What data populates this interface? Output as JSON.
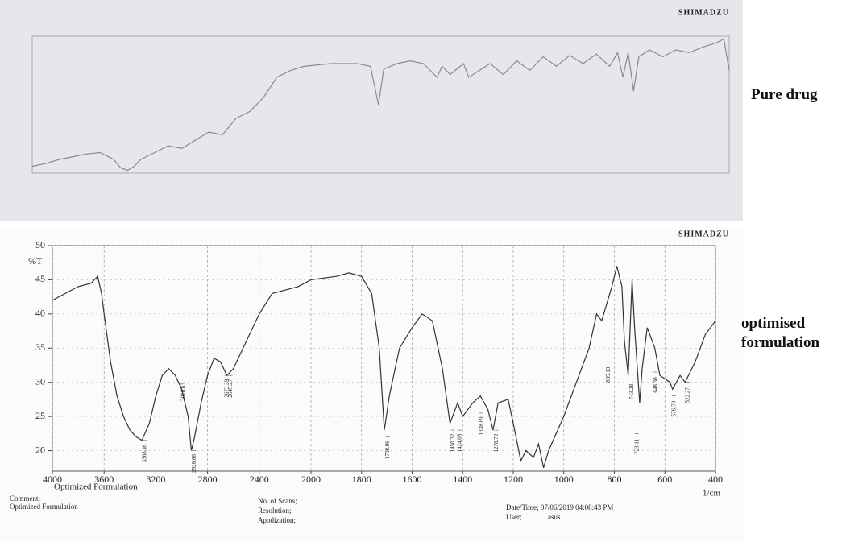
{
  "chart_data": [
    {
      "type": "line",
      "brand": "SHIMADZU",
      "side_label": "Pure drug",
      "color": "#8a8a90",
      "x_scale_break": 2000,
      "xlim": [
        4000,
        400
      ],
      "ylim": [
        0,
        100
      ],
      "x": [
        4000,
        3900,
        3800,
        3700,
        3600,
        3500,
        3400,
        3350,
        3300,
        3250,
        3200,
        3100,
        3000,
        2900,
        2800,
        2700,
        2600,
        2500,
        2400,
        2300,
        2200,
        2100,
        2000,
        1900,
        1800,
        1750,
        1720,
        1700,
        1650,
        1600,
        1550,
        1500,
        1480,
        1450,
        1400,
        1380,
        1300,
        1250,
        1200,
        1150,
        1100,
        1050,
        1000,
        950,
        900,
        850,
        820,
        800,
        780,
        760,
        740,
        700,
        650,
        600,
        550,
        500,
        450,
        420,
        400
      ],
      "values": [
        5,
        7,
        10,
        12,
        14,
        15,
        10,
        4,
        2,
        5,
        10,
        15,
        20,
        18,
        24,
        30,
        28,
        40,
        45,
        55,
        70,
        75,
        78,
        80,
        80,
        78,
        50,
        76,
        80,
        82,
        80,
        70,
        78,
        72,
        80,
        70,
        80,
        72,
        82,
        75,
        85,
        78,
        86,
        80,
        87,
        78,
        88,
        70,
        88,
        60,
        85,
        90,
        85,
        90,
        88,
        92,
        95,
        98,
        75
      ]
    },
    {
      "type": "line",
      "brand": "SHIMADZU",
      "side_label": "optimised formulation",
      "color": "#333",
      "ylabel": "%T",
      "xlabel": "1/cm",
      "x_caption": "Optimized Formulation",
      "grid": true,
      "x_scale_break": 2000,
      "xlim": [
        4000,
        400
      ],
      "ylim": [
        17,
        50
      ],
      "xticks": [
        4000,
        3600,
        3200,
        2800,
        2400,
        2000,
        1800,
        1600,
        1400,
        1200,
        1000,
        800,
        600,
        400
      ],
      "yticks": [
        20,
        25,
        30,
        35,
        40,
        45,
        50
      ],
      "x": [
        4000,
        3900,
        3800,
        3700,
        3650,
        3620,
        3600,
        3550,
        3500,
        3450,
        3400,
        3350,
        3308,
        3250,
        3200,
        3150,
        3100,
        3050,
        3000,
        2950,
        2925,
        2900,
        2850,
        2800,
        2750,
        2700,
        2650,
        2600,
        2500,
        2400,
        2300,
        2200,
        2100,
        2000,
        1900,
        1850,
        1800,
        1760,
        1730,
        1710,
        1690,
        1650,
        1600,
        1560,
        1520,
        1480,
        1450,
        1420,
        1400,
        1360,
        1330,
        1300,
        1280,
        1260,
        1220,
        1200,
        1170,
        1150,
        1120,
        1100,
        1080,
        1060,
        1000,
        950,
        900,
        870,
        850,
        810,
        790,
        770,
        760,
        745,
        730,
        720,
        700,
        690,
        670,
        640,
        620,
        580,
        570,
        540,
        520,
        480,
        440,
        400
      ],
      "values": [
        42,
        43,
        44,
        44.5,
        45.5,
        43,
        40,
        33,
        28,
        25,
        23,
        22,
        21.5,
        24,
        28,
        31,
        32,
        31,
        29,
        25,
        20,
        22,
        27,
        31,
        33.5,
        33,
        31,
        32,
        36,
        40,
        43,
        43.5,
        44,
        45,
        45.5,
        46,
        45.5,
        43,
        35,
        23,
        28,
        35,
        38,
        40,
        39,
        32,
        24,
        27,
        25,
        27,
        28,
        26,
        23,
        27,
        27.5,
        24,
        18.5,
        20,
        19,
        21,
        17.5,
        20,
        25,
        30,
        35,
        40,
        39,
        44,
        47,
        44,
        36,
        31,
        45,
        38,
        27,
        32,
        38,
        35,
        31,
        30,
        29,
        31,
        30,
        33,
        37,
        39
      ],
      "annotations": [
        {
          "x": 3308,
          "y": 21.5,
          "text": "3308.46"
        },
        {
          "x": 3010,
          "y": 30.5,
          "text": "3010.63"
        },
        {
          "x": 2926,
          "y": 20,
          "text": "2926.66"
        },
        {
          "x": 2673,
          "y": 31,
          "text": "2673.29"
        },
        {
          "x": 2645,
          "y": 31,
          "text": "2645.27"
        },
        {
          "x": 1708,
          "y": 22,
          "text": "1708.06"
        },
        {
          "x": 1450,
          "y": 23,
          "text": "1450.32"
        },
        {
          "x": 1424,
          "y": 23,
          "text": "1424.08"
        },
        {
          "x": 1338,
          "y": 25.5,
          "text": "1338.69"
        },
        {
          "x": 1278,
          "y": 23,
          "text": "1278.72"
        },
        {
          "x": 835,
          "y": 33,
          "text": "835.13"
        },
        {
          "x": 743,
          "y": 30.5,
          "text": "743.28"
        },
        {
          "x": 723,
          "y": 22.5,
          "text": "723.11"
        },
        {
          "x": 648,
          "y": 31.5,
          "text": "648.30"
        },
        {
          "x": 576,
          "y": 28,
          "text": "576.70"
        },
        {
          "x": 522,
          "y": 30,
          "text": "522.27"
        }
      ],
      "footer": {
        "comment_label": "Comment;",
        "comment": "Optimized Formulation",
        "scans": "No. of Scans;",
        "resolution": "Resolution;",
        "apodization": "Apodization;",
        "datetime": "Date/Time; 07/06/2019 04:08:43 PM",
        "user": "User;",
        "user_name": "asus"
      }
    }
  ]
}
